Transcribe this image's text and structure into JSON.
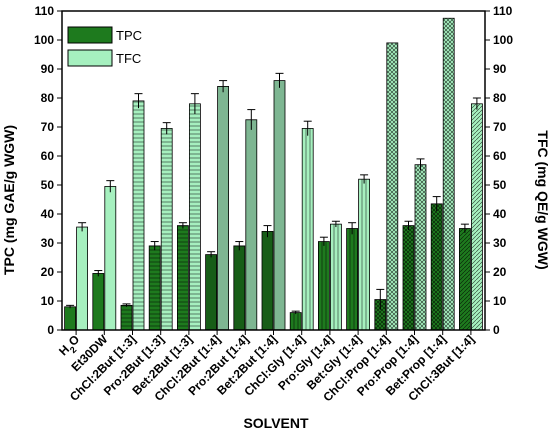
{
  "chart_data": {
    "type": "bar",
    "xlabel": "SOLVENT",
    "ylabel_left": "TPC (mg GAE/g WGW)",
    "ylabel_right": "TFC (mg QE/g WGW)",
    "ylim": [
      0,
      110
    ],
    "yticks": [
      0,
      10,
      20,
      30,
      40,
      50,
      60,
      70,
      80,
      90,
      100,
      110
    ],
    "legend_position": "top-left",
    "categories": [
      "H2O",
      "Et30DW",
      "ChCl:2But [1:3]",
      "Pro:2But [1:3]",
      "Bet:2But [1:3]",
      "ChCl:2But [1:4]",
      "Pro:2But [1:4]",
      "Bet:2But [1:4]",
      "ChCl:Gly [1:4]",
      "Pro:Gly [1:4]",
      "Bet:Gly [1:4]",
      "ChCl:Prop [1:4]",
      "Pro:Prop [1:4]",
      "Bet:Prop [1:4]",
      "ChCl:3But [1:4]"
    ],
    "category_display": [
      {
        "base": "H",
        "sub": "2",
        "tail": "O"
      },
      {
        "base": "Et30DW",
        "sub": "",
        "tail": ""
      },
      {
        "base": "ChCl:2But [1:3]",
        "sub": "",
        "tail": ""
      },
      {
        "base": "Pro:2But [1:3]",
        "sub": "",
        "tail": ""
      },
      {
        "base": "Bet:2But [1:3]",
        "sub": "",
        "tail": ""
      },
      {
        "base": "ChCl:2But [1:4]",
        "sub": "",
        "tail": ""
      },
      {
        "base": "Pro:2But [1:4]",
        "sub": "",
        "tail": ""
      },
      {
        "base": "Bet:2But [1:4]",
        "sub": "",
        "tail": ""
      },
      {
        "base": "ChCl:Gly [1:4]",
        "sub": "",
        "tail": ""
      },
      {
        "base": "Pro:Gly [1:4]",
        "sub": "",
        "tail": ""
      },
      {
        "base": "Bet:Gly [1:4]",
        "sub": "",
        "tail": ""
      },
      {
        "base": "ChCl:Prop [1:4]",
        "sub": "",
        "tail": ""
      },
      {
        "base": "Pro:Prop [1:4]",
        "sub": "",
        "tail": ""
      },
      {
        "base": "Bet:Prop [1:4]",
        "sub": "",
        "tail": ""
      },
      {
        "base": "ChCl:3But [1:4]",
        "sub": "",
        "tail": ""
      }
    ],
    "series": [
      {
        "name": "TPC",
        "color": "#1e7a1e",
        "values": [
          8,
          19.5,
          8.5,
          29,
          36,
          26,
          29,
          34,
          6,
          30.5,
          35,
          10.5,
          36,
          43.5,
          35
        ],
        "errors": [
          0.5,
          1,
          0.5,
          1.5,
          1,
          1,
          1.5,
          2,
          0.5,
          1.5,
          2,
          3.5,
          1.5,
          2.5,
          1.5
        ]
      },
      {
        "name": "TFC",
        "color": "#a6f0bf",
        "values": [
          35.5,
          49.5,
          79,
          69.5,
          78,
          84,
          72.5,
          86,
          69.5,
          36.5,
          52,
          99,
          57,
          107.5,
          78
        ],
        "errors": [
          1.5,
          2,
          2.5,
          2,
          3.5,
          2,
          3.5,
          2.5,
          2.5,
          1,
          1.5,
          0,
          2,
          0,
          2
        ]
      }
    ],
    "patterns": [
      "solid",
      "solid",
      "hline",
      "hline",
      "hline",
      "dline",
      "dline",
      "dline",
      "vline",
      "vline",
      "vline",
      "cross",
      "cross",
      "cross",
      "diag"
    ]
  }
}
